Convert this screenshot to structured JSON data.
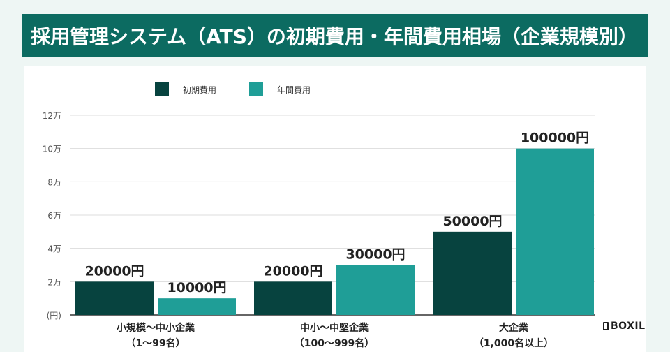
{
  "title": "採用管理システム（ATS）の初期費用・年間費用相場（企業規模別）",
  "brand": "BOXIL",
  "colors": {
    "title_bg": "#0c6b61",
    "initial": "#07433f",
    "annual": "#1f9e97"
  },
  "chart_data": {
    "type": "bar",
    "categories": [
      [
        "小規模～中小企業",
        "（1～99名）"
      ],
      [
        "中小～中堅企業",
        "（100～999名）"
      ],
      [
        "大企業",
        "（1,000名以上）"
      ]
    ],
    "series": [
      {
        "name": "初期費用",
        "values": [
          20000,
          20000,
          50000
        ],
        "labels": [
          "20000円",
          "20000円",
          "50000円"
        ]
      },
      {
        "name": "年間費用",
        "values": [
          10000,
          30000,
          100000
        ],
        "labels": [
          "10000円",
          "30000円",
          "100000円"
        ]
      }
    ],
    "ylim": [
      0,
      120000
    ],
    "yticks": [
      0,
      20000,
      40000,
      60000,
      80000,
      100000,
      120000
    ],
    "ytick_labels": [
      "(円)",
      "2万",
      "4万",
      "6万",
      "8万",
      "10万",
      "12万"
    ],
    "legend_position": "top-left",
    "grid": true
  }
}
